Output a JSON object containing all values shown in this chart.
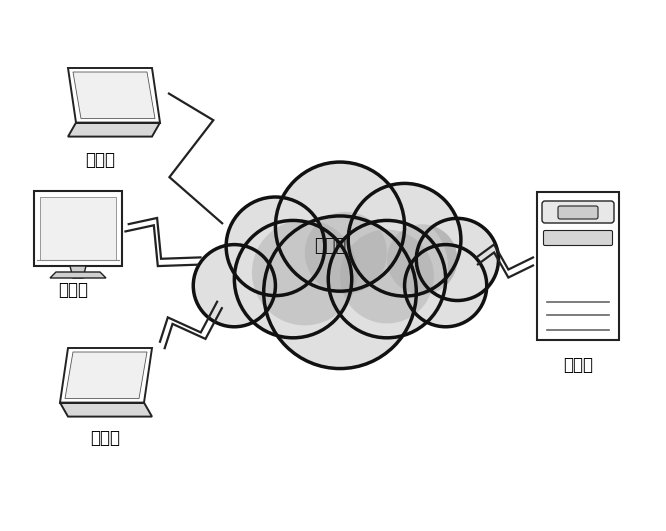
{
  "background_color": "#ffffff",
  "cloud_label": "互联网",
  "cloud_label_fontsize": 13,
  "client_label": "用户端",
  "server_label": "服务端",
  "label_fontsize": 12,
  "figsize": [
    6.66,
    5.31
  ],
  "dpi": 100,
  "line_color": "#222222",
  "line_width": 1.6,
  "cloud_fill_light": "#e0e0e0",
  "cloud_fill_dark": "#aaaaaa",
  "cloud_edge": "#111111",
  "cloud_edge_lw": 2.5
}
